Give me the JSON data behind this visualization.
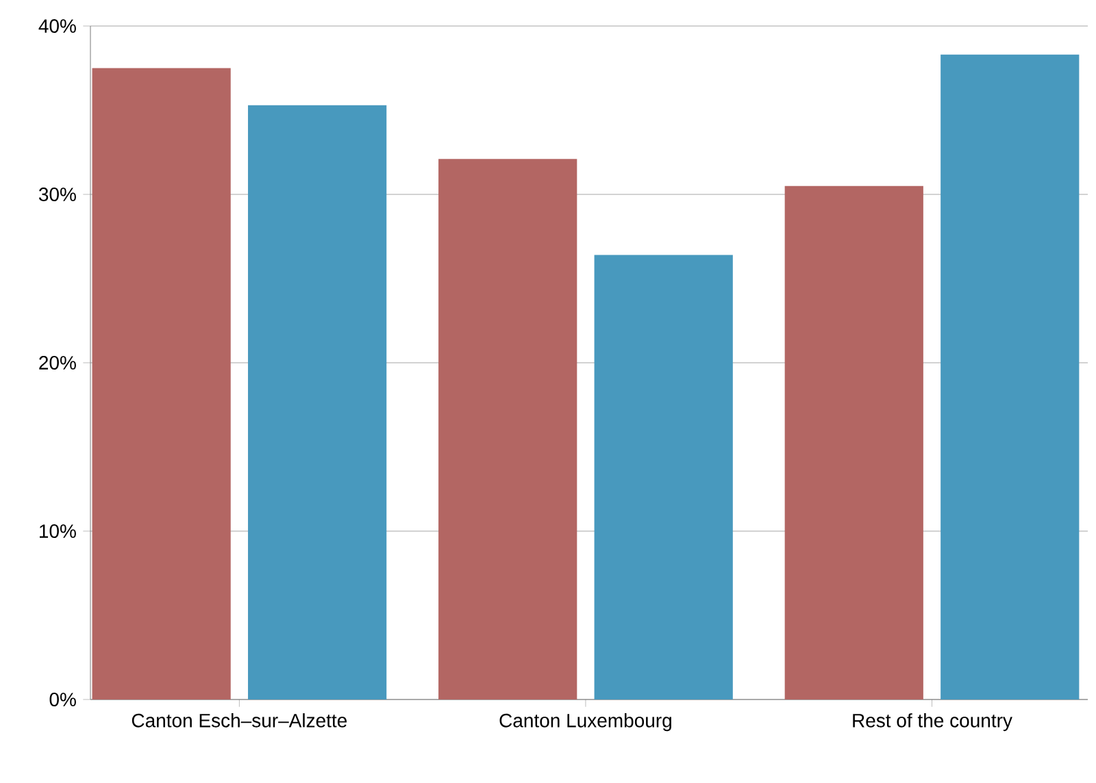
{
  "chart_data": {
    "type": "bar",
    "categories": [
      "Canton Esch–sur–Alzette",
      "Canton Luxembourg",
      "Rest of the country"
    ],
    "series": [
      {
        "color": "#b36663",
        "values": [
          37.5,
          32.1,
          30.5
        ]
      },
      {
        "color": "#4899be",
        "values": [
          35.3,
          26.4,
          38.3
        ]
      }
    ],
    "ylim": [
      0,
      40
    ],
    "yticks": [
      {
        "value": 0,
        "label": "0%"
      },
      {
        "value": 10,
        "label": "10%"
      },
      {
        "value": 20,
        "label": "20%"
      },
      {
        "value": 30,
        "label": "30%"
      },
      {
        "value": 40,
        "label": "40%"
      }
    ],
    "grid": "y"
  }
}
